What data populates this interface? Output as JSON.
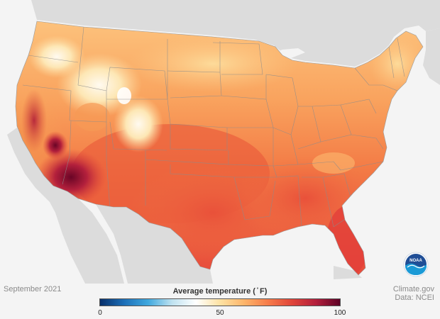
{
  "period": "September 2021",
  "credit": {
    "line1": "Climate.gov",
    "line2": "Data: NCEI"
  },
  "legend": {
    "title": "Average temperature ( ̊ F)",
    "min_label": "0",
    "mid_label": "50",
    "max_label": "100",
    "colors": [
      "#08306b",
      "#1c6fb8",
      "#3fa8de",
      "#bfe2f0",
      "#ffffff",
      "#fde2a3",
      "#fdb56a",
      "#f67c4a",
      "#e0453a",
      "#b31f3c",
      "#5e0327"
    ]
  },
  "logo": {
    "text": "NOAA",
    "primary_color": "#1f4e96",
    "accent_color": "#1a9ad6"
  },
  "map": {
    "land_color": "#dcdcdc",
    "ocean_color": "#f4f4f4",
    "state_border_color": "#8c8c8c"
  }
}
